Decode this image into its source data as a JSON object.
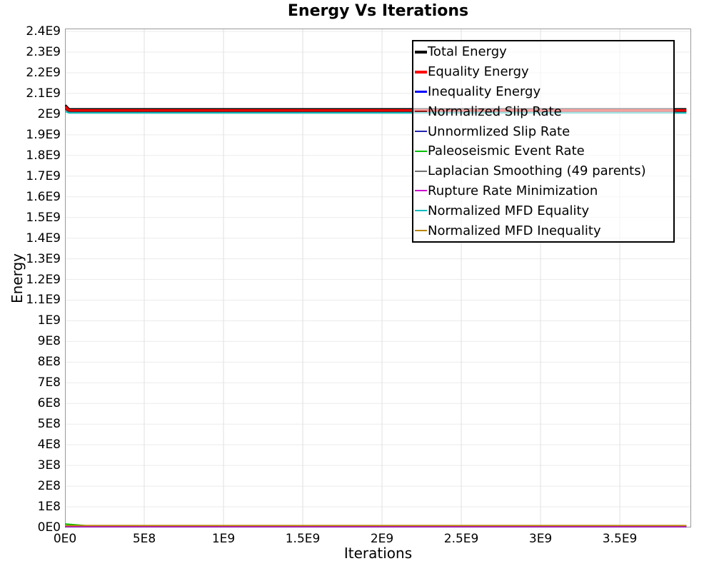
{
  "page": {
    "background": "#ffffff"
  },
  "chart_data": {
    "type": "line",
    "title": "Energy Vs Iterations",
    "xlabel": "Iterations",
    "ylabel": "Energy",
    "xlim": [
      0,
      3950000000.0
    ],
    "ylim": [
      0,
      2414000000.0
    ],
    "grid": true,
    "grid_color_h": "#ebebeb",
    "grid_color_v": "#e0e0e0",
    "border_color": "#9a9a9a",
    "legend_position": "top-right",
    "x_ticks": [
      {
        "value": 0,
        "label": "0E0"
      },
      {
        "value": 500000000.0,
        "label": "5E8"
      },
      {
        "value": 1000000000.0,
        "label": "1E9"
      },
      {
        "value": 1500000000.0,
        "label": "1.5E9"
      },
      {
        "value": 2000000000.0,
        "label": "2E9"
      },
      {
        "value": 2500000000.0,
        "label": "2.5E9"
      },
      {
        "value": 3000000000.0,
        "label": "3E9"
      },
      {
        "value": 3500000000.0,
        "label": "3.5E9"
      }
    ],
    "y_ticks": [
      {
        "value": 0,
        "label": "0E0"
      },
      {
        "value": 100000000.0,
        "label": "1E8"
      },
      {
        "value": 200000000.0,
        "label": "2E8"
      },
      {
        "value": 300000000.0,
        "label": "3E8"
      },
      {
        "value": 400000000.0,
        "label": "4E8"
      },
      {
        "value": 500000000.0,
        "label": "5E8"
      },
      {
        "value": 600000000.0,
        "label": "6E8"
      },
      {
        "value": 700000000.0,
        "label": "7E8"
      },
      {
        "value": 800000000.0,
        "label": "8E8"
      },
      {
        "value": 900000000.0,
        "label": "9E8"
      },
      {
        "value": 1000000000.0,
        "label": "1E9"
      },
      {
        "value": 1100000000.0,
        "label": "1.1E9"
      },
      {
        "value": 1200000000.0,
        "label": "1.2E9"
      },
      {
        "value": 1300000000.0,
        "label": "1.3E9"
      },
      {
        "value": 1400000000.0,
        "label": "1.4E9"
      },
      {
        "value": 1500000000.0,
        "label": "1.5E9"
      },
      {
        "value": 1600000000.0,
        "label": "1.6E9"
      },
      {
        "value": 1700000000.0,
        "label": "1.7E9"
      },
      {
        "value": 1800000000.0,
        "label": "1.8E9"
      },
      {
        "value": 1900000000.0,
        "label": "1.9E9"
      },
      {
        "value": 2000000000.0,
        "label": "2E9"
      },
      {
        "value": 2100000000.0,
        "label": "2.1E9"
      },
      {
        "value": 2200000000.0,
        "label": "2.2E9"
      },
      {
        "value": 2300000000.0,
        "label": "2.3E9"
      },
      {
        "value": 2400000000.0,
        "label": "2.4E9"
      }
    ],
    "series": [
      {
        "name": "Total Energy",
        "color": "#000000",
        "width": 4,
        "points": [
          [
            0,
            2042000000.0
          ],
          [
            25000000.0,
            2022000000.0
          ],
          [
            3920000000.0,
            2022000000.0
          ]
        ]
      },
      {
        "name": "Equality Energy",
        "color": "#ff0000",
        "width": 4,
        "points": [
          [
            0,
            2036000000.0
          ],
          [
            25000000.0,
            2017000000.0
          ],
          [
            3920000000.0,
            2017000000.0
          ]
        ]
      },
      {
        "name": "Inequality Energy",
        "color": "#0000ff",
        "width": 3,
        "points": [
          [
            0,
            3000000.0
          ],
          [
            3920000000.0,
            3000000.0
          ]
        ]
      },
      {
        "name": "Normalized Slip Rate",
        "color": "#8b1a1a",
        "width": 2,
        "points": [
          [
            0,
            2024000000.0
          ],
          [
            25000000.0,
            2012000000.0
          ],
          [
            3920000000.0,
            2012000000.0
          ]
        ]
      },
      {
        "name": "Unnormlized Slip Rate",
        "color": "#2323b2",
        "width": 2,
        "points": [
          [
            0,
            3000000.0
          ],
          [
            3920000000.0,
            3000000.0
          ]
        ]
      },
      {
        "name": "Paleoseismic Event Rate",
        "color": "#00c000",
        "width": 2,
        "points": [
          [
            0,
            17000000.0
          ],
          [
            160000000.0,
            7000000.0
          ],
          [
            3920000000.0,
            7000000.0
          ]
        ]
      },
      {
        "name": "Laplacian Smoothing (49 parents)",
        "color": "#707070",
        "width": 2,
        "points": [
          [
            0,
            8000000.0
          ],
          [
            3920000000.0,
            8000000.0
          ]
        ]
      },
      {
        "name": "Rupture Rate Minimization",
        "color": "#cc00cc",
        "width": 2,
        "points": [
          [
            0,
            5000000.0
          ],
          [
            3920000000.0,
            5000000.0
          ]
        ]
      },
      {
        "name": "Normalized MFD Equality",
        "color": "#00bcbe",
        "width": 2,
        "points": [
          [
            0,
            2013000000.0
          ],
          [
            25000000.0,
            2006000000.0
          ],
          [
            3920000000.0,
            2006000000.0
          ]
        ]
      },
      {
        "name": "Normalized MFD Inequality",
        "color": "#b8860b",
        "width": 2,
        "points": [
          [
            0,
            9000000.0
          ],
          [
            3920000000.0,
            9000000.0
          ]
        ]
      }
    ]
  }
}
